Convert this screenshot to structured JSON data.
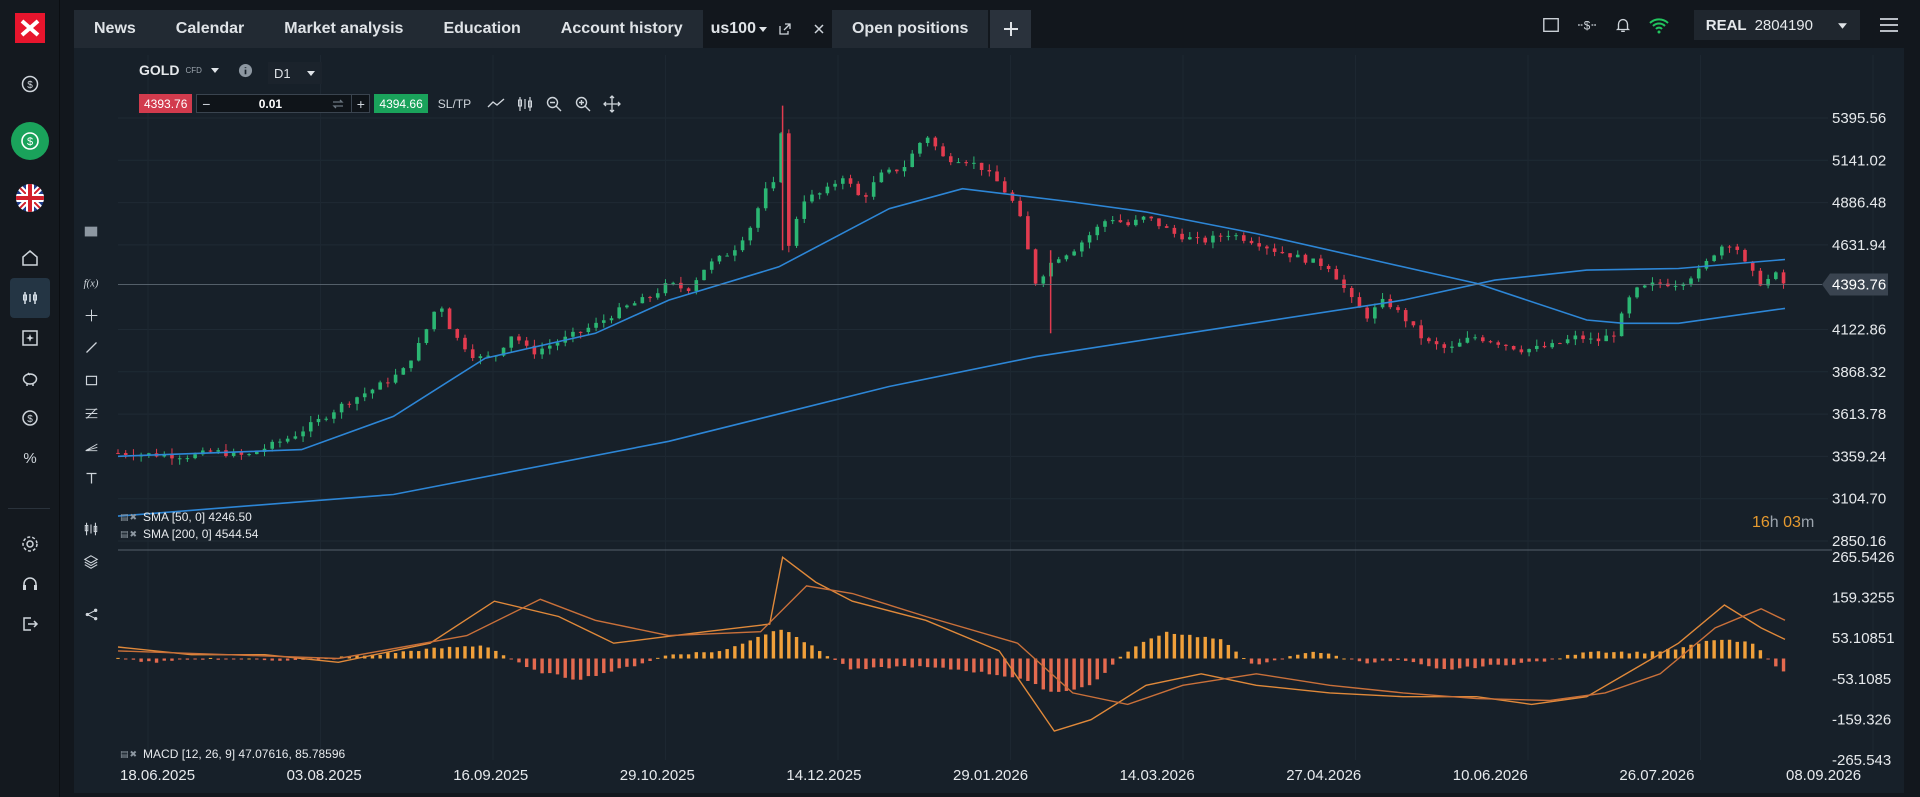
{
  "tabs": [
    {
      "label": "News"
    },
    {
      "label": "Calendar"
    },
    {
      "label": "Market analysis"
    },
    {
      "label": "Education"
    },
    {
      "label": "Account history"
    },
    {
      "label": "us100",
      "active": true
    },
    {
      "label": "Open positions"
    }
  ],
  "account": {
    "type": "REAL",
    "number": "2804190"
  },
  "instrument": {
    "name": "GOLD",
    "kind": "CFD",
    "timeframe": "D1"
  },
  "trade": {
    "sell_price": "4393.76",
    "volume": "0.01",
    "buy_price": "4394.66",
    "sltp_label": "SL/TP"
  },
  "indicators": [
    {
      "label": "SMA [50, 0] 4246.50"
    },
    {
      "label": "SMA [200, 0] 4544.54"
    }
  ],
  "macd_label": "MACD [12, 26, 9] 47.07616, 85.78596",
  "countdown": {
    "hours": "16",
    "h": "h",
    "minutes": "03",
    "m": "m"
  },
  "colors": {
    "up": "#2bb673",
    "down": "#e23b4f",
    "sma": "#2d86d6",
    "macd_hist_pos": "#f0a03a",
    "macd_hist_neg": "#e36a4f",
    "current_tag": "#3a4450"
  },
  "chart_data": [
    {
      "type": "candlestick",
      "current_price": 4393.76,
      "current_price_label": "4393.76",
      "y_ticks": [
        "5395.56",
        "5141.02",
        "4886.48",
        "4631.94",
        "4122.86",
        "3868.32",
        "3613.78",
        "3359.24",
        "3104.70",
        "2850.16"
      ],
      "y_tick_values": [
        5395.56,
        5141.02,
        4886.48,
        4631.94,
        4122.86,
        3868.32,
        3613.78,
        3359.24,
        3104.7,
        2850.16
      ],
      "x_ticks": [
        "18.06.2025",
        "03.08.2025",
        "16.09.2025",
        "29.10.2025",
        "14.12.2025",
        "29.01.2026",
        "14.03.2026",
        "27.04.2026",
        "10.06.2026",
        "26.07.2026",
        "08.09.2026"
      ],
      "close_path_points": [
        [
          0,
          3380
        ],
        [
          20,
          3370
        ],
        [
          40,
          3360
        ],
        [
          52,
          3390
        ],
        [
          70,
          3360
        ],
        [
          80,
          3410
        ],
        [
          95,
          3480
        ],
        [
          110,
          3580
        ],
        [
          125,
          3690
        ],
        [
          140,
          3770
        ],
        [
          155,
          3870
        ],
        [
          165,
          4050
        ],
        [
          175,
          4300
        ],
        [
          182,
          4100
        ],
        [
          195,
          3950
        ],
        [
          205,
          3960
        ],
        [
          215,
          4100
        ],
        [
          225,
          3980
        ],
        [
          240,
          4050
        ],
        [
          260,
          4150
        ],
        [
          275,
          4250
        ],
        [
          290,
          4320
        ],
        [
          300,
          4400
        ],
        [
          310,
          4360
        ],
        [
          320,
          4500
        ],
        [
          335,
          4600
        ],
        [
          345,
          4750
        ],
        [
          352,
          4950
        ],
        [
          358,
          5000
        ],
        [
          362,
          5400
        ],
        [
          365,
          4600
        ],
        [
          372,
          4900
        ],
        [
          385,
          4950
        ],
        [
          395,
          5050
        ],
        [
          405,
          4900
        ],
        [
          415,
          5050
        ],
        [
          428,
          5100
        ],
        [
          440,
          5300
        ],
        [
          450,
          5150
        ],
        [
          460,
          5150
        ],
        [
          470,
          5100
        ],
        [
          480,
          5000
        ],
        [
          490,
          4850
        ],
        [
          500,
          4400
        ],
        [
          510,
          4550
        ],
        [
          520,
          4600
        ],
        [
          530,
          4700
        ],
        [
          540,
          4800
        ],
        [
          550,
          4750
        ],
        [
          560,
          4800
        ],
        [
          575,
          4700
        ],
        [
          590,
          4650
        ],
        [
          605,
          4700
        ],
        [
          620,
          4650
        ],
        [
          630,
          4600
        ],
        [
          645,
          4550
        ],
        [
          660,
          4500
        ],
        [
          672,
          4300
        ],
        [
          680,
          4200
        ],
        [
          690,
          4300
        ],
        [
          700,
          4200
        ],
        [
          712,
          4050
        ],
        [
          725,
          4000
        ],
        [
          738,
          4080
        ],
        [
          750,
          4050
        ],
        [
          765,
          4000
        ],
        [
          780,
          4020
        ],
        [
          795,
          4080
        ],
        [
          805,
          4050
        ],
        [
          815,
          4100
        ],
        [
          825,
          4350
        ],
        [
          838,
          4400
        ],
        [
          850,
          4400
        ],
        [
          862,
          4480
        ],
        [
          872,
          4620
        ],
        [
          880,
          4650
        ],
        [
          887,
          4500
        ],
        [
          895,
          4400
        ],
        [
          903,
          4450
        ],
        [
          908,
          4390
        ]
      ],
      "sma50": [
        [
          0,
          3360
        ],
        [
          100,
          3400
        ],
        [
          150,
          3600
        ],
        [
          200,
          3950
        ],
        [
          260,
          4100
        ],
        [
          300,
          4300
        ],
        [
          360,
          4500
        ],
        [
          420,
          4850
        ],
        [
          460,
          4970
        ],
        [
          520,
          4890
        ],
        [
          560,
          4830
        ],
        [
          620,
          4700
        ],
        [
          680,
          4550
        ],
        [
          740,
          4400
        ],
        [
          800,
          4180
        ],
        [
          820,
          4160
        ],
        [
          850,
          4160
        ],
        [
          908,
          4250
        ]
      ],
      "sma200": [
        [
          0,
          3000
        ],
        [
          150,
          3130
        ],
        [
          300,
          3450
        ],
        [
          420,
          3780
        ],
        [
          500,
          3960
        ],
        [
          600,
          4130
        ],
        [
          700,
          4300
        ],
        [
          750,
          4420
        ],
        [
          800,
          4480
        ],
        [
          850,
          4490
        ],
        [
          908,
          4544
        ]
      ]
    },
    {
      "type": "macd",
      "y_ticks": [
        "265.5426",
        "159.3255",
        "53.10851",
        "-53.1085",
        "-159.326",
        "-265.543"
      ],
      "y_tick_values": [
        265.5426,
        159.3255,
        53.10851,
        -53.1085,
        -159.326,
        -265.543
      ],
      "macd_line": [
        [
          0,
          30
        ],
        [
          40,
          10
        ],
        [
          80,
          10
        ],
        [
          120,
          -10
        ],
        [
          170,
          40
        ],
        [
          205,
          150
        ],
        [
          240,
          110
        ],
        [
          270,
          40
        ],
        [
          320,
          70
        ],
        [
          355,
          90
        ],
        [
          362,
          265
        ],
        [
          380,
          200
        ],
        [
          400,
          150
        ],
        [
          440,
          100
        ],
        [
          480,
          20
        ],
        [
          510,
          -190
        ],
        [
          530,
          -160
        ],
        [
          560,
          -70
        ],
        [
          590,
          -40
        ],
        [
          620,
          -70
        ],
        [
          660,
          -90
        ],
        [
          700,
          -100
        ],
        [
          740,
          -100
        ],
        [
          770,
          -120
        ],
        [
          800,
          -100
        ],
        [
          825,
          -30
        ],
        [
          850,
          40
        ],
        [
          875,
          140
        ],
        [
          895,
          80
        ],
        [
          908,
          50
        ]
      ],
      "signal_line": [
        [
          0,
          20
        ],
        [
          60,
          10
        ],
        [
          120,
          0
        ],
        [
          190,
          60
        ],
        [
          230,
          155
        ],
        [
          260,
          100
        ],
        [
          300,
          60
        ],
        [
          350,
          70
        ],
        [
          375,
          190
        ],
        [
          400,
          170
        ],
        [
          440,
          110
        ],
        [
          490,
          40
        ],
        [
          520,
          -90
        ],
        [
          550,
          -120
        ],
        [
          580,
          -70
        ],
        [
          620,
          -40
        ],
        [
          660,
          -70
        ],
        [
          700,
          -90
        ],
        [
          740,
          -105
        ],
        [
          780,
          -110
        ],
        [
          810,
          -90
        ],
        [
          840,
          -40
        ],
        [
          870,
          80
        ],
        [
          895,
          130
        ],
        [
          908,
          100
        ]
      ],
      "histogram": [
        [
          0,
          0
        ],
        [
          20,
          -10
        ],
        [
          50,
          0
        ],
        [
          100,
          -5
        ],
        [
          140,
          10
        ],
        [
          170,
          25
        ],
        [
          200,
          35
        ],
        [
          225,
          -30
        ],
        [
          250,
          -55
        ],
        [
          280,
          -20
        ],
        [
          300,
          10
        ],
        [
          330,
          20
        ],
        [
          350,
          60
        ],
        [
          363,
          80
        ],
        [
          375,
          40
        ],
        [
          400,
          -30
        ],
        [
          430,
          -20
        ],
        [
          460,
          -30
        ],
        [
          490,
          -50
        ],
        [
          510,
          -90
        ],
        [
          530,
          -70
        ],
        [
          550,
          20
        ],
        [
          570,
          70
        ],
        [
          600,
          50
        ],
        [
          620,
          -20
        ],
        [
          650,
          20
        ],
        [
          680,
          -10
        ],
        [
          700,
          -5
        ],
        [
          720,
          -30
        ],
        [
          745,
          -20
        ],
        [
          780,
          -5
        ],
        [
          800,
          20
        ],
        [
          830,
          15
        ],
        [
          850,
          25
        ],
        [
          870,
          50
        ],
        [
          890,
          40
        ],
        [
          908,
          -40
        ]
      ]
    }
  ]
}
